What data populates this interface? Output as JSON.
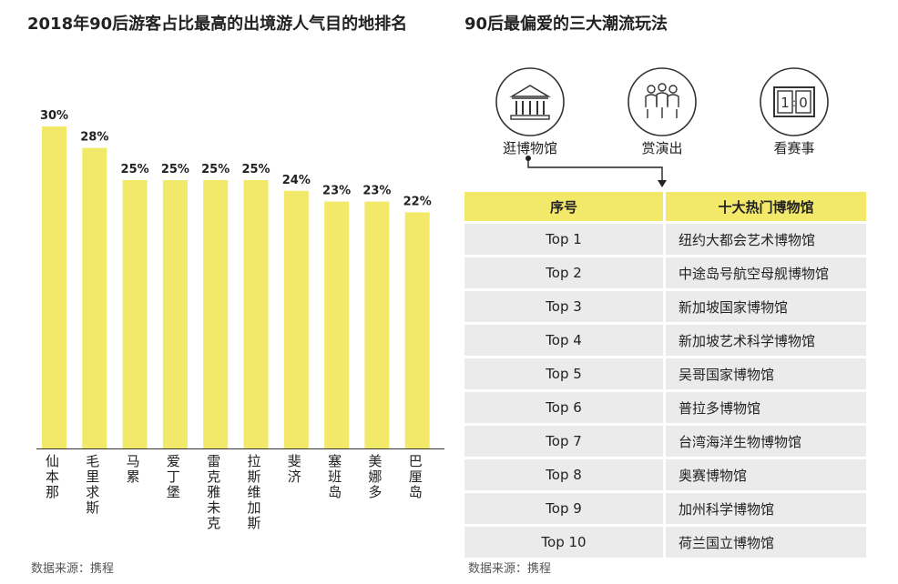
{
  "left_panel": {
    "title": "2018年90后游客占比最高的出境游人气目的地排名",
    "source": "数据来源：携程"
  },
  "right_panel": {
    "title": "90后最偏爱的三大潮流玩法",
    "source": "数据来源：携程",
    "plays": [
      {
        "label": "逛博物馆",
        "icon": "museum-icon"
      },
      {
        "label": "赏演出",
        "icon": "audience-icon"
      },
      {
        "label": "看赛事",
        "icon": "scoreboard-icon",
        "score_left": "1",
        "score_right": "0"
      }
    ],
    "table": {
      "headers": [
        "序号",
        "十大热门博物馆"
      ],
      "rows": [
        {
          "rank": "Top 1",
          "name": "纽约大都会艺术博物馆"
        },
        {
          "rank": "Top 2",
          "name": "中途岛号航空母舰博物馆"
        },
        {
          "rank": "Top 3",
          "name": "新加坡国家博物馆"
        },
        {
          "rank": "Top 4",
          "name": "新加坡艺术科学博物馆"
        },
        {
          "rank": "Top 5",
          "name": "吴哥国家博物馆"
        },
        {
          "rank": "Top 6",
          "name": "普拉多博物馆"
        },
        {
          "rank": "Top 7",
          "name": "台湾海洋生物博物馆"
        },
        {
          "rank": "Top 8",
          "name": "奥赛博物馆"
        },
        {
          "rank": "Top 9",
          "name": "加州科学博物馆"
        },
        {
          "rank": "Top 10",
          "name": "荷兰国立博物馆"
        }
      ]
    }
  },
  "colors": {
    "bar": "#f2e86a",
    "header": "#f2e86a",
    "row": "#ebebeb",
    "text": "#222222"
  },
  "chart_data": {
    "type": "bar",
    "title": "2018年90后游客占比最高的出境游人气目的地排名",
    "categories": [
      "仙本那",
      "毛里求斯",
      "马累",
      "爱丁堡",
      "雷克雅未克",
      "拉斯维加斯",
      "斐济",
      "塞班岛",
      "美娜多",
      "巴厘岛"
    ],
    "values": [
      30,
      28,
      25,
      25,
      25,
      25,
      24,
      23,
      23,
      22
    ],
    "data_labels": [
      "30%",
      "28%",
      "25%",
      "25%",
      "25%",
      "25%",
      "24%",
      "23%",
      "23%",
      "22%"
    ],
    "unit": "%",
    "ylim": [
      0,
      30
    ],
    "grid": false,
    "legend": "none"
  }
}
